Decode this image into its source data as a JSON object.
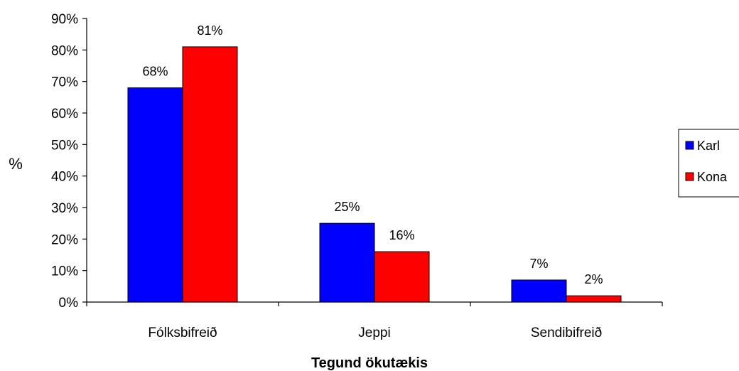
{
  "chart_data": {
    "type": "bar",
    "categories": [
      "Fólksbifreið",
      "Jeppi",
      "Sendibifreið"
    ],
    "series": [
      {
        "name": "Karl",
        "values": [
          68,
          25,
          7
        ],
        "labels": [
          "68%",
          "25%",
          "7%"
        ],
        "color": "#0000ff"
      },
      {
        "name": "Kona",
        "values": [
          81,
          16,
          2
        ],
        "labels": [
          "81%",
          "16%",
          "2%"
        ],
        "color": "#ff0000"
      }
    ],
    "xlabel": "Tegund ökutækis",
    "ylabel": "%",
    "ylim": [
      0,
      90
    ],
    "yticks": [
      "0%",
      "10%",
      "20%",
      "30%",
      "40%",
      "50%",
      "60%",
      "70%",
      "80%",
      "90%"
    ],
    "grid": false,
    "legend": "right"
  }
}
